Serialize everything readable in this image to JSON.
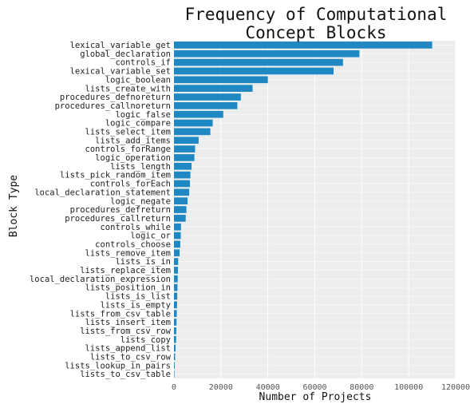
{
  "chart_data": {
    "type": "bar",
    "orientation": "horizontal",
    "title": [
      "Frequency of Computational",
      "Concept Blocks"
    ],
    "xlabel": "Number of Projects",
    "ylabel": "Block Type",
    "xlim": [
      0,
      120000
    ],
    "xticks": [
      0,
      20000,
      40000,
      60000,
      80000,
      100000,
      120000
    ],
    "grid": true,
    "bar_color": "#1f88c2",
    "background_color": "#eceeee",
    "categories": [
      "lexical_variable_get",
      "global_declaration",
      "controls_if",
      "lexical_variable_set",
      "logic_boolean",
      "lists_create_with",
      "procedures_defnoreturn",
      "procedures_callnoreturn",
      "logic_false",
      "logic_compare",
      "lists_select_item",
      "lists_add_items",
      "controls_forRange",
      "logic_operation",
      "lists_length",
      "lists_pick_random_item",
      "controls_forEach",
      "local_declaration_statement",
      "logic_negate",
      "procedures_defreturn",
      "procedures_callreturn",
      "controls_while",
      "logic_or",
      "controls_choose",
      "lists_remove_item",
      "lists_is_in",
      "lists_replace_item",
      "local_declaration_expression",
      "lists_position_in",
      "lists_is_list",
      "lists_is_empty",
      "lists_from_csv_table",
      "lists_insert_item",
      "lists_from_csv_row",
      "lists_copy",
      "lists_append_list",
      "lists_to_csv_row",
      "lists_lookup_in_pairs",
      "lists_to_csv_table"
    ],
    "values": [
      110000,
      79000,
      72000,
      68000,
      40000,
      33500,
      28500,
      27000,
      21000,
      16500,
      15500,
      10500,
      9000,
      8700,
      7500,
      7000,
      6800,
      6500,
      5800,
      5300,
      5000,
      3000,
      2900,
      2700,
      2400,
      1800,
      1700,
      1600,
      1500,
      1400,
      1300,
      1200,
      1100,
      1000,
      900,
      700,
      500,
      300,
      200
    ]
  }
}
